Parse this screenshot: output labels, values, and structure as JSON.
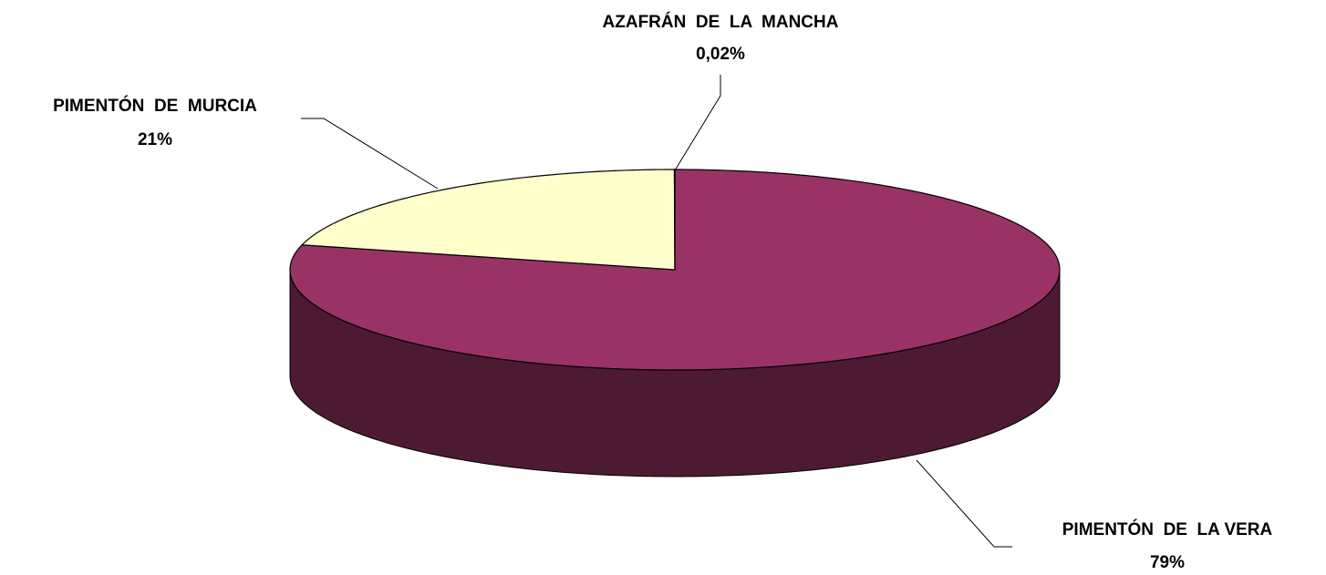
{
  "chart_data": {
    "type": "pie3d",
    "categories": [
      "PIMENTÓN  DE  LA VERA",
      "PIMENTÓN  DE  MURCIA",
      "AZAFRÁN  DE  LA  MANCHA"
    ],
    "values": [
      79,
      21,
      0.02
    ],
    "value_labels": [
      "79%",
      "21%",
      "0,02%"
    ],
    "colors": [
      "#993366",
      "#ffffcc",
      "#9999ff"
    ]
  }
}
